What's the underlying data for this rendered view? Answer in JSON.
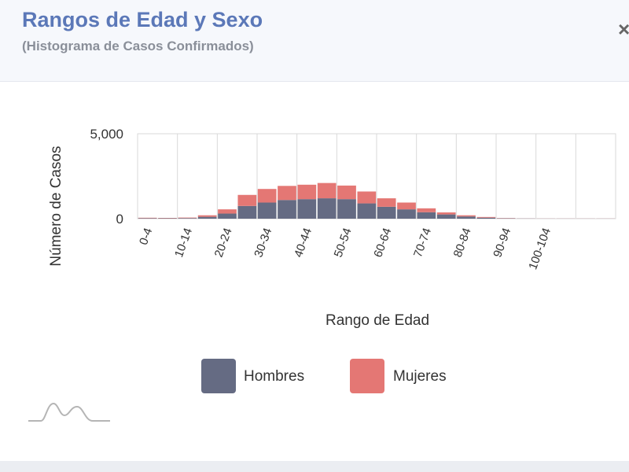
{
  "header": {
    "title": "Rangos de Edad y Sexo",
    "subtitle": "(Histograma de Casos Confirmados)",
    "close_label": "×"
  },
  "legend": {
    "hombres_label": "Hombres",
    "mujeres_label": "Mujeres"
  },
  "colors": {
    "hombres": "#656b83",
    "mujeres": "#e47774",
    "title": "#5b78b8",
    "grid": "#d9d9d9"
  },
  "icons": {
    "bottom_left": "mountain-line-icon"
  },
  "chart_data": {
    "type": "bar",
    "stacked": true,
    "title": "Rangos de Edad y Sexo",
    "subtitle": "(Histograma de Casos Confirmados)",
    "xlabel": "Rango de Edad",
    "ylabel": "Número de Casos",
    "ylim": [
      0,
      5000
    ],
    "yticks": [
      "0",
      "5,000"
    ],
    "tick_labels": [
      "0-4",
      "10-14",
      "20-24",
      "30-34",
      "40-44",
      "50-54",
      "60-64",
      "70-74",
      "80-84",
      "90-94",
      "100-104"
    ],
    "categories": [
      "0-4",
      "5-9",
      "10-14",
      "15-19",
      "20-24",
      "25-29",
      "30-34",
      "35-39",
      "40-44",
      "45-49",
      "50-54",
      "55-59",
      "60-64",
      "65-69",
      "70-74",
      "75-79",
      "80-84",
      "85-89",
      "90-94",
      "95-99",
      "100-104",
      "105-109",
      "110-114",
      "115-119"
    ],
    "series": [
      {
        "name": "Hombres",
        "values": [
          30,
          25,
          35,
          110,
          300,
          750,
          950,
          1100,
          1150,
          1200,
          1150,
          900,
          700,
          550,
          380,
          250,
          130,
          60,
          20,
          10,
          5,
          5,
          5,
          5
        ]
      },
      {
        "name": "Mujeres",
        "values": [
          25,
          20,
          30,
          90,
          250,
          650,
          800,
          830,
          850,
          900,
          800,
          700,
          500,
          400,
          230,
          120,
          70,
          40,
          15,
          5,
          5,
          5,
          5,
          5
        ]
      }
    ],
    "grid": true,
    "legend_position": "bottom"
  }
}
